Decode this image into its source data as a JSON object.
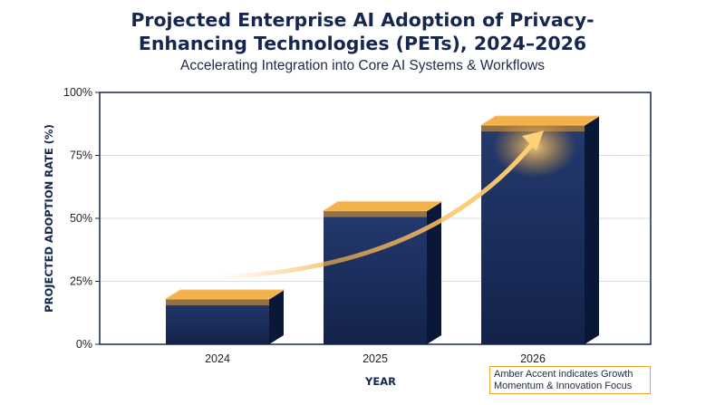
{
  "chart_data": {
    "type": "bar",
    "title_lines": [
      "Projected Enterprise AI Adoption of Privacy-",
      "Enhancing Technologies (PETs), 2024–2026"
    ],
    "subtitle": "Accelerating Integration into Core AI Systems & Workflows",
    "xlabel": "YEAR",
    "ylabel": "PROJECTED ADOPTION RATE (%)",
    "categories": [
      "2024",
      "2025",
      "2026"
    ],
    "values": [
      18,
      53,
      87
    ],
    "ylim": [
      0,
      100
    ],
    "yticks": [
      0,
      25,
      50,
      75,
      100
    ],
    "ytick_labels": [
      "0%",
      "25%",
      "50%",
      "75%",
      "100%"
    ],
    "grid": true,
    "annotation_lines": [
      "Amber Accent indicates Growth",
      "Momentum & Innovation Focus"
    ],
    "colors": {
      "bar": "#16274f",
      "bar_side": "#0b1736",
      "accent": "#f0a32a",
      "frame": "#16274f",
      "grid": "#d9dde3"
    }
  }
}
